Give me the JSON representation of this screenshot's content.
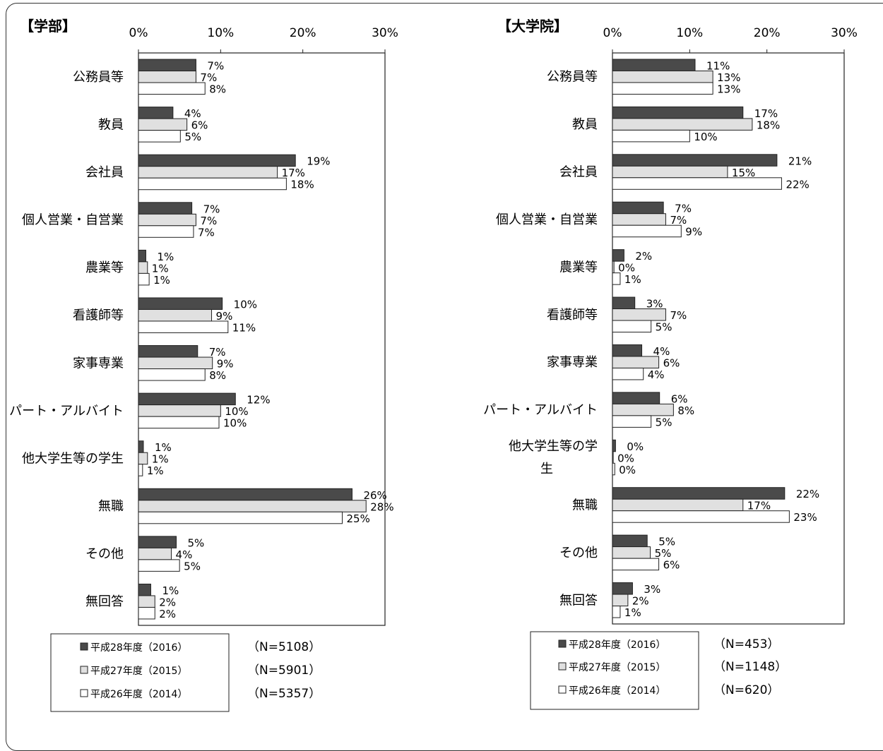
{
  "chart_data": [
    {
      "type": "bar",
      "orientation": "horizontal",
      "title": "【学部】",
      "xlim": [
        0,
        30
      ],
      "x_ticks": [
        "0%",
        "10%",
        "20%",
        "30%"
      ],
      "categories": [
        [
          "公務員等"
        ],
        [
          "教員"
        ],
        [
          "会社員"
        ],
        [
          "個人営業・自営業"
        ],
        [
          "農業等"
        ],
        [
          "看護師等"
        ],
        [
          "家事専業"
        ],
        [
          "パート・アルバイト"
        ],
        [
          "他大学生等の学生"
        ],
        [
          "無職"
        ],
        [
          "その他"
        ],
        [
          "無回答"
        ]
      ],
      "series": [
        {
          "name": "平成28年度（2016）",
          "n_label": "（N=5108）",
          "values": [
            7,
            4,
            19,
            7,
            1,
            10,
            7,
            12,
            1,
            26,
            5,
            1
          ],
          "exact": [
            7.0,
            4.2,
            19.1,
            6.5,
            0.9,
            10.2,
            7.2,
            11.8,
            0.6,
            26.0,
            4.6,
            1.5
          ]
        },
        {
          "name": "平成27年度（2015）",
          "n_label": "（N=5901）",
          "values": [
            7,
            6,
            17,
            7,
            1,
            9,
            9,
            10,
            1,
            28,
            4,
            2
          ],
          "exact": [
            7.0,
            5.9,
            16.9,
            7.0,
            1.1,
            8.9,
            9.0,
            10.0,
            1.1,
            27.7,
            4.0,
            2.0
          ]
        },
        {
          "name": "平成26年度（2014）",
          "n_label": "（N=5357）",
          "values": [
            8,
            5,
            18,
            7,
            1,
            11,
            8,
            10,
            1,
            25,
            5,
            2
          ],
          "exact": [
            8.1,
            5.1,
            18.0,
            6.7,
            1.3,
            10.9,
            8.1,
            9.8,
            0.5,
            24.8,
            5.0,
            2.0
          ]
        }
      ],
      "legend_position": "bottom-left"
    },
    {
      "type": "bar",
      "orientation": "horizontal",
      "title": "【大学院】",
      "xlim": [
        0,
        30
      ],
      "x_ticks": [
        "0%",
        "10%",
        "20%",
        "30%"
      ],
      "categories": [
        [
          "公務員等"
        ],
        [
          "教員"
        ],
        [
          "会社員"
        ],
        [
          "個人営業・自営業"
        ],
        [
          "農業等"
        ],
        [
          "看護師等"
        ],
        [
          "家事専業"
        ],
        [
          "パート・アルバイト"
        ],
        [
          "他大学生等の学",
          "生"
        ],
        [
          "無職"
        ],
        [
          "その他"
        ],
        [
          "無回答"
        ]
      ],
      "series": [
        {
          "name": "平成28年度（2016）",
          "n_label": "（N=453）",
          "values": [
            11,
            17,
            21,
            7,
            2,
            3,
            4,
            6,
            0,
            22,
            5,
            3
          ],
          "exact": [
            10.7,
            16.9,
            21.3,
            6.6,
            1.5,
            2.9,
            3.8,
            6.1,
            0.4,
            22.3,
            4.5,
            2.6
          ]
        },
        {
          "name": "平成27年度（2015）",
          "n_label": "（N=1148）",
          "values": [
            13,
            18,
            15,
            7,
            0,
            7,
            6,
            8,
            0,
            17,
            5,
            2
          ],
          "exact": [
            13.0,
            18.1,
            14.9,
            6.9,
            0.2,
            6.9,
            6.0,
            7.9,
            0.1,
            16.9,
            4.9,
            2.0
          ]
        },
        {
          "name": "平成26年度（2014）",
          "n_label": "（N=620）",
          "values": [
            13,
            10,
            22,
            9,
            1,
            5,
            4,
            5,
            0,
            23,
            6,
            1
          ],
          "exact": [
            13.0,
            10.0,
            21.9,
            8.9,
            1.0,
            5.0,
            4.0,
            5.0,
            0.3,
            22.9,
            6.0,
            1.0
          ]
        }
      ],
      "legend_position": "bottom-left"
    }
  ],
  "colors": {
    "series0": "#4a4a4a",
    "series1": "#e0e0e0",
    "series2": "#ffffff",
    "stroke": "#222222"
  }
}
